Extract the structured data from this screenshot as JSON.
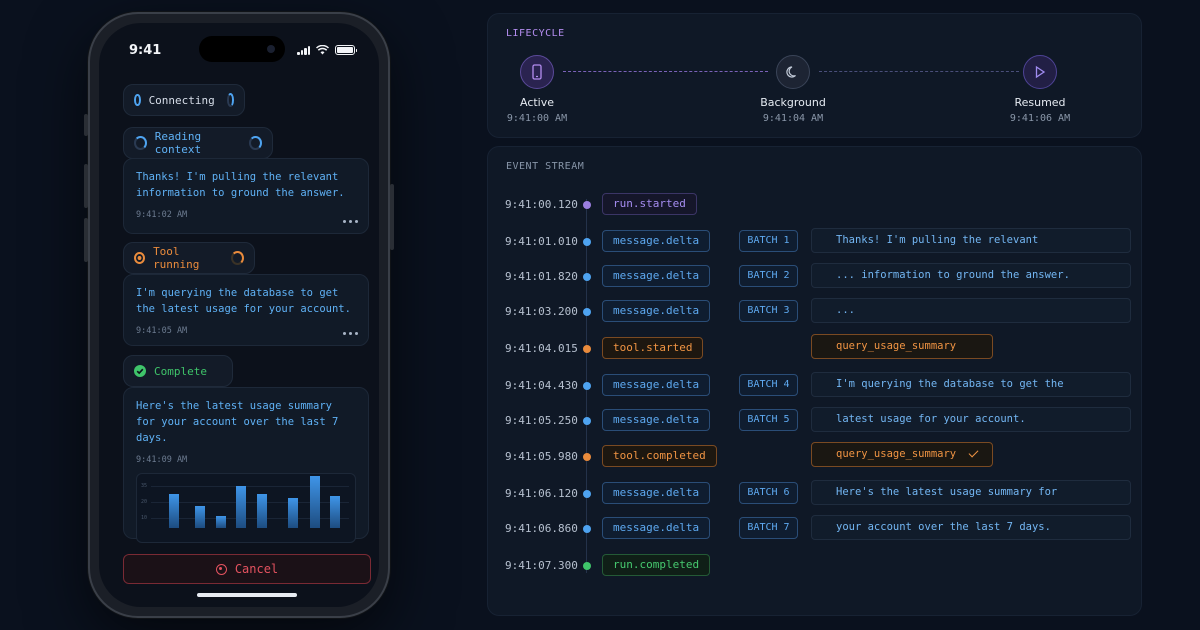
{
  "phone": {
    "status_time": "9:41",
    "pills": {
      "connecting": "Connecting",
      "reading": "Reading context",
      "tool": "Tool running",
      "complete": "Complete"
    },
    "messages": [
      {
        "text": "Thanks! I'm pulling the relevant information to ground the answer.",
        "time": "9:41:02 AM"
      },
      {
        "text": "I'm querying the database to get the latest usage for your account.",
        "time": "9:41:05 AM"
      },
      {
        "text": "Here's the latest usage summary for your account over the last 7 days.",
        "time": "9:41:09 AM"
      }
    ],
    "chart_labels": [
      "35",
      "20",
      "10"
    ],
    "cancel_label": "Cancel"
  },
  "lifecycle": {
    "title": "LIFECYCLE",
    "nodes": [
      {
        "label": "Active",
        "time": "9:41:00 AM"
      },
      {
        "label": "Background",
        "time": "9:41:04 AM"
      },
      {
        "label": "Resumed",
        "time": "9:41:06 AM"
      }
    ]
  },
  "stream": {
    "title": "EVENT STREAM",
    "events": [
      {
        "time": "9:41:00.120",
        "type": "run.started"
      },
      {
        "time": "9:41:01.010",
        "type": "message.delta",
        "batch": "BATCH 1",
        "payload": "Thanks! I'm pulling the relevant"
      },
      {
        "time": "9:41:01.820",
        "type": "message.delta",
        "batch": "BATCH 2",
        "payload": "... information to ground the answer."
      },
      {
        "time": "9:41:03.200",
        "type": "message.delta",
        "batch": "BATCH 3",
        "payload": "..."
      },
      {
        "time": "9:41:04.015",
        "type": "tool.started",
        "payload": "query_usage_summary"
      },
      {
        "time": "9:41:04.430",
        "type": "message.delta",
        "batch": "BATCH 4",
        "payload": "I'm querying the database to get the"
      },
      {
        "time": "9:41:05.250",
        "type": "message.delta",
        "batch": "BATCH 5",
        "payload": "latest usage for your account."
      },
      {
        "time": "9:41:05.980",
        "type": "tool.completed",
        "payload": "query_usage_summary"
      },
      {
        "time": "9:41:06.120",
        "type": "message.delta",
        "batch": "BATCH 6",
        "payload": "Here's the latest usage summary for"
      },
      {
        "time": "9:41:06.860",
        "type": "message.delta",
        "batch": "BATCH 7",
        "payload": "your account over the last 7 days."
      },
      {
        "time": "9:41:07.300",
        "type": "run.completed"
      }
    ]
  },
  "colors": {
    "purple": "#9b7fe0",
    "blue": "#4ea3f0",
    "orange": "#e98b3c",
    "green": "#3fc46a",
    "red": "#e3525f"
  }
}
